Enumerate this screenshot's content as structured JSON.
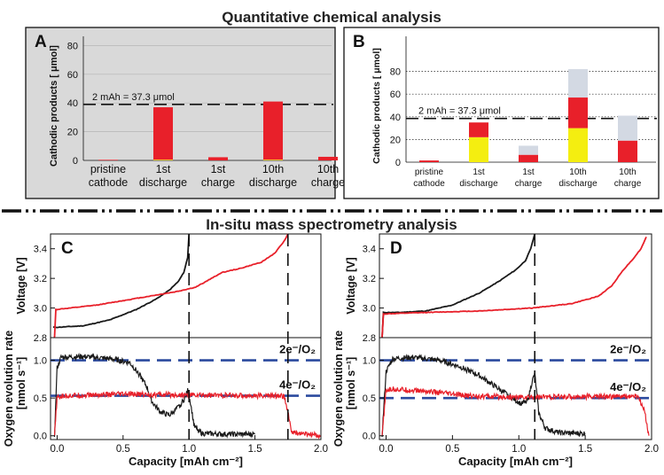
{
  "headings": {
    "top": "Quantitative chemical analysis",
    "middle": "In-situ mass spectrometry analysis"
  },
  "colors": {
    "red": "#e8202a",
    "yellow": "#f4ee10",
    "grey": "#d3d9e3",
    "black": "#1a1a1a",
    "blue": "#2b4a9e",
    "panelA_bg": "#d9d9d9"
  },
  "chart_data": [
    {
      "panel": "A",
      "type": "bar",
      "stacked": true,
      "ylabel": "Cathodic products [ μmol]",
      "ylim": [
        0,
        95
      ],
      "yticks": [
        0,
        20,
        40,
        60,
        80
      ],
      "categories": [
        [
          "pristine",
          "cathode"
        ],
        [
          "1st",
          "discharge"
        ],
        [
          "1st",
          "charge"
        ],
        [
          "10th",
          "discharge"
        ],
        [
          "10th",
          "charge"
        ]
      ],
      "series": [
        {
          "name": "yellow",
          "color": "#f4ee10",
          "values": [
            0,
            0.5,
            0,
            0.5,
            0
          ]
        },
        {
          "name": "red",
          "color": "#e8202a",
          "values": [
            0.4,
            36.5,
            2.2,
            40.5,
            2.5
          ]
        }
      ],
      "reference": {
        "value": 39,
        "label": "2 mAh = 37.3 μmol"
      }
    },
    {
      "panel": "B",
      "type": "bar",
      "stacked": true,
      "ylabel": "Cathodic products [ μmol]",
      "ylim": [
        0,
        88
      ],
      "yticks": [
        0,
        20,
        40,
        60,
        80
      ],
      "categories": [
        [
          "pristine",
          "cathode"
        ],
        [
          "1st",
          "discharge"
        ],
        [
          "1st",
          "charge"
        ],
        [
          "10th",
          "discharge"
        ],
        [
          "10th",
          "charge"
        ]
      ],
      "series": [
        {
          "name": "yellow",
          "color": "#f4ee10",
          "values": [
            0,
            22,
            0,
            30,
            0
          ]
        },
        {
          "name": "red",
          "color": "#e8202a",
          "values": [
            1.5,
            13,
            6.5,
            27,
            19
          ]
        },
        {
          "name": "grey",
          "color": "#d3d9e3",
          "values": [
            0,
            0,
            8,
            25,
            22
          ]
        }
      ],
      "reference": {
        "value": 38.5,
        "label": "2 mAh = 37.3  μmol"
      }
    },
    {
      "panel": "C",
      "type": "line",
      "xlabel": "Capacity [mAh cm⁻²]",
      "xlim": [
        -0.05,
        2.0
      ],
      "xticks": [
        "0.0",
        "0.5",
        "1.0",
        "1.5",
        "2.0"
      ],
      "vlines": [
        1.0,
        1.75
      ],
      "voltage": {
        "ylabel": "Voltage [V]",
        "ylim": [
          2.8,
          3.5
        ],
        "yticks": [
          "2.8",
          "3.0",
          "3.2",
          "3.4"
        ],
        "series": [
          {
            "name": "black",
            "color": "#1a1a1a",
            "points": [
              [
                -0.03,
                2.87
              ],
              [
                0.0,
                2.87
              ],
              [
                0.2,
                2.88
              ],
              [
                0.4,
                2.92
              ],
              [
                0.6,
                2.99
              ],
              [
                0.75,
                3.06
              ],
              [
                0.85,
                3.12
              ],
              [
                0.92,
                3.18
              ],
              [
                0.96,
                3.24
              ],
              [
                0.99,
                3.34
              ],
              [
                1.0,
                3.5
              ]
            ]
          },
          {
            "name": "red",
            "color": "#e8202a",
            "points": [
              [
                -0.02,
                2.8
              ],
              [
                -0.01,
                2.99
              ],
              [
                0.1,
                3.0
              ],
              [
                0.3,
                3.02
              ],
              [
                0.5,
                3.05
              ],
              [
                0.7,
                3.08
              ],
              [
                0.9,
                3.11
              ],
              [
                1.05,
                3.14
              ],
              [
                1.15,
                3.19
              ],
              [
                1.25,
                3.24
              ],
              [
                1.4,
                3.27
              ],
              [
                1.55,
                3.31
              ],
              [
                1.65,
                3.37
              ],
              [
                1.72,
                3.45
              ],
              [
                1.75,
                3.5
              ]
            ]
          }
        ]
      },
      "oer": {
        "ylabel_line1": "Oxygen evolution rate",
        "ylabel_line2": "[nmol s⁻¹]",
        "ylim": [
          -0.05,
          1.3
        ],
        "yticks": [
          "0.0",
          "0.5",
          "1.0"
        ],
        "ref_lines": [
          {
            "value": 1.0,
            "label": "2e⁻/O₂"
          },
          {
            "value": 0.53,
            "label": "4e⁻/O₂"
          }
        ],
        "series": [
          {
            "name": "black",
            "color": "#1a1a1a",
            "points": [
              [
                -0.02,
                0
              ],
              [
                0.0,
                0.9
              ],
              [
                0.03,
                1.04
              ],
              [
                0.2,
                1.05
              ],
              [
                0.4,
                1.02
              ],
              [
                0.55,
                0.97
              ],
              [
                0.62,
                0.82
              ],
              [
                0.68,
                0.65
              ],
              [
                0.72,
                0.45
              ],
              [
                0.78,
                0.32
              ],
              [
                0.85,
                0.27
              ],
              [
                0.92,
                0.38
              ],
              [
                0.97,
                0.5
              ],
              [
                0.99,
                0.6
              ],
              [
                1.01,
                0.45
              ],
              [
                1.04,
                0.12
              ],
              [
                1.1,
                0.03
              ],
              [
                1.3,
                0.02
              ],
              [
                1.5,
                0.02
              ]
            ]
          },
          {
            "name": "red",
            "color": "#e8202a",
            "points": [
              [
                -0.02,
                0
              ],
              [
                0.0,
                0.5
              ],
              [
                0.05,
                0.53
              ],
              [
                0.5,
                0.55
              ],
              [
                1.0,
                0.54
              ],
              [
                1.5,
                0.53
              ],
              [
                1.72,
                0.53
              ],
              [
                1.75,
                0.3
              ],
              [
                1.78,
                0.04
              ],
              [
                1.9,
                0.02
              ],
              [
                2.0,
                0.0
              ]
            ]
          }
        ]
      }
    },
    {
      "panel": "D",
      "type": "line",
      "xlabel": "Capacity [mAh cm⁻²]",
      "xlim": [
        -0.05,
        2.0
      ],
      "xticks": [
        "0.0",
        "0.5",
        "1.0",
        "1.5",
        "2.0"
      ],
      "vlines": [
        1.12
      ],
      "voltage": {
        "ylabel": "Voltage [V]",
        "ylim": [
          2.8,
          3.5
        ],
        "yticks": [
          "2.8",
          "3.0",
          "3.2",
          "3.4"
        ],
        "series": [
          {
            "name": "black",
            "color": "#1a1a1a",
            "points": [
              [
                -0.03,
                2.8
              ],
              [
                -0.02,
                2.97
              ],
              [
                0.1,
                2.97
              ],
              [
                0.3,
                2.98
              ],
              [
                0.5,
                3.02
              ],
              [
                0.7,
                3.1
              ],
              [
                0.85,
                3.18
              ],
              [
                0.98,
                3.26
              ],
              [
                1.05,
                3.32
              ],
              [
                1.09,
                3.4
              ],
              [
                1.12,
                3.5
              ]
            ]
          },
          {
            "name": "red",
            "color": "#e8202a",
            "points": [
              [
                -0.03,
                2.8
              ],
              [
                -0.02,
                2.96
              ],
              [
                0.3,
                2.97
              ],
              [
                0.7,
                2.98
              ],
              [
                1.1,
                3.0
              ],
              [
                1.4,
                3.03
              ],
              [
                1.6,
                3.08
              ],
              [
                1.7,
                3.15
              ],
              [
                1.78,
                3.25
              ],
              [
                1.85,
                3.32
              ],
              [
                1.92,
                3.4
              ],
              [
                1.96,
                3.48
              ]
            ]
          }
        ]
      },
      "oer": {
        "ylabel_line1": "Oxygen evolution rate",
        "ylabel_line2": "[nmol s⁻¹]",
        "ylim": [
          -0.05,
          1.3
        ],
        "yticks": [
          "0.0",
          "0.5",
          "1.0"
        ],
        "ref_lines": [
          {
            "value": 1.0,
            "label": "2e⁻/O₂"
          },
          {
            "value": 0.5,
            "label": "4e⁻/O₂"
          }
        ],
        "series": [
          {
            "name": "black",
            "color": "#1a1a1a",
            "points": [
              [
                -0.03,
                0
              ],
              [
                0.0,
                0.85
              ],
              [
                0.05,
                1.02
              ],
              [
                0.2,
                1.04
              ],
              [
                0.4,
                1.0
              ],
              [
                0.55,
                0.92
              ],
              [
                0.7,
                0.8
              ],
              [
                0.85,
                0.62
              ],
              [
                0.95,
                0.5
              ],
              [
                1.02,
                0.42
              ],
              [
                1.07,
                0.48
              ],
              [
                1.1,
                0.72
              ],
              [
                1.12,
                0.82
              ],
              [
                1.15,
                0.3
              ],
              [
                1.2,
                0.1
              ],
              [
                1.3,
                0.04
              ],
              [
                1.5,
                0.03
              ]
            ]
          },
          {
            "name": "red",
            "color": "#e8202a",
            "points": [
              [
                -0.03,
                0
              ],
              [
                0.0,
                0.6
              ],
              [
                0.05,
                0.62
              ],
              [
                0.3,
                0.59
              ],
              [
                0.6,
                0.53
              ],
              [
                1.0,
                0.51
              ],
              [
                1.5,
                0.52
              ],
              [
                1.9,
                0.52
              ],
              [
                1.95,
                0.3
              ],
              [
                1.98,
                0.0
              ]
            ]
          }
        ]
      }
    }
  ]
}
